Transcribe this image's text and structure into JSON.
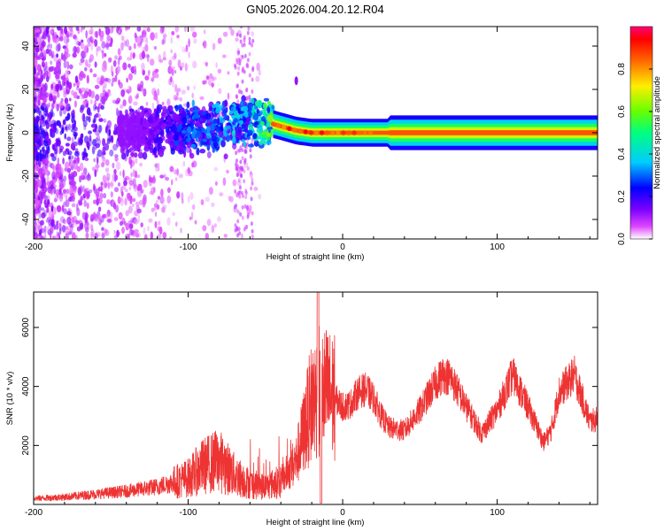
{
  "title": "GN05.2026.004.20.12.R04",
  "colors": {
    "snr_line": "#ee3333",
    "axis": "#000000",
    "background": "#ffffff"
  },
  "chart_data": [
    {
      "type": "heatmap",
      "name": "spectrogram",
      "xlabel": "Height of straight line (km)",
      "ylabel": "Frequency (Hz)",
      "xlim": [
        -200,
        165
      ],
      "ylim": [
        -49,
        49
      ],
      "xticks": [
        -200,
        -100,
        0,
        100
      ],
      "yticks": [
        -40,
        -20,
        0,
        20,
        40
      ],
      "xtick_labels": [
        "-200",
        "-100",
        "0",
        "100"
      ],
      "ytick_labels": [
        "-40",
        "-20",
        "0",
        "20",
        "40"
      ],
      "colorbar": {
        "label": "Normalized spectral amplitude",
        "range": [
          0,
          1
        ],
        "ticks": [
          0.0,
          0.2,
          0.4,
          0.6,
          0.8
        ],
        "tick_labels": [
          "0.0",
          "0.2",
          "0.4",
          "0.6",
          "0.8"
        ],
        "colormap": [
          "#ffffff",
          "#dd00ff",
          "#6600ff",
          "#0000ff",
          "#00ffff",
          "#00ff00",
          "#ffff00",
          "#ff8800",
          "#ff0000",
          "#ff0066"
        ]
      },
      "ridge": {
        "description_points_x": [
          -140,
          -120,
          -100,
          -80,
          -60,
          -50,
          -40,
          -30,
          -20,
          -10,
          0,
          10,
          30,
          60,
          100,
          165
        ],
        "frequency_hz": [
          0,
          1,
          2,
          3,
          5,
          5,
          3,
          1,
          0,
          0,
          0,
          0,
          0,
          0,
          0,
          0
        ],
        "amplitude": [
          0.1,
          0.2,
          0.3,
          0.35,
          0.4,
          0.6,
          0.7,
          0.8,
          0.85,
          0.85,
          0.8,
          0.75,
          0.7,
          0.9,
          0.95,
          0.95
        ]
      }
    },
    {
      "type": "line",
      "name": "snr",
      "xlabel": "Height of straight line (km)",
      "ylabel": "SNR (10 * v/v)",
      "xlim": [
        -200,
        165
      ],
      "ylim": [
        0,
        7200
      ],
      "xticks": [
        -200,
        -100,
        0,
        100
      ],
      "yticks": [
        2000,
        4000,
        6000
      ],
      "xtick_labels": [
        "-200",
        "-100",
        "0",
        "100"
      ],
      "ytick_labels": [
        "2000",
        "4000",
        "6000"
      ],
      "series": [
        {
          "name": "SNR",
          "x": [
            -200,
            -180,
            -160,
            -140,
            -120,
            -100,
            -90,
            -80,
            -70,
            -60,
            -50,
            -40,
            -30,
            -25,
            -20,
            -15,
            -10,
            -5,
            0,
            5,
            10,
            15,
            20,
            25,
            30,
            40,
            50,
            60,
            65,
            70,
            75,
            80,
            90,
            100,
            110,
            120,
            130,
            135,
            140,
            150,
            160,
            165
          ],
          "y": [
            200,
            250,
            350,
            450,
            600,
            900,
            1300,
            1500,
            1000,
            700,
            600,
            800,
            1500,
            2500,
            3500,
            3800,
            3800,
            3600,
            3300,
            3400,
            3800,
            3900,
            3600,
            3000,
            2600,
            2500,
            3200,
            4100,
            4400,
            4300,
            3800,
            3300,
            2400,
            3200,
            4400,
            3300,
            2100,
            2500,
            3800,
            4400,
            2800,
            2900
          ]
        }
      ]
    }
  ]
}
